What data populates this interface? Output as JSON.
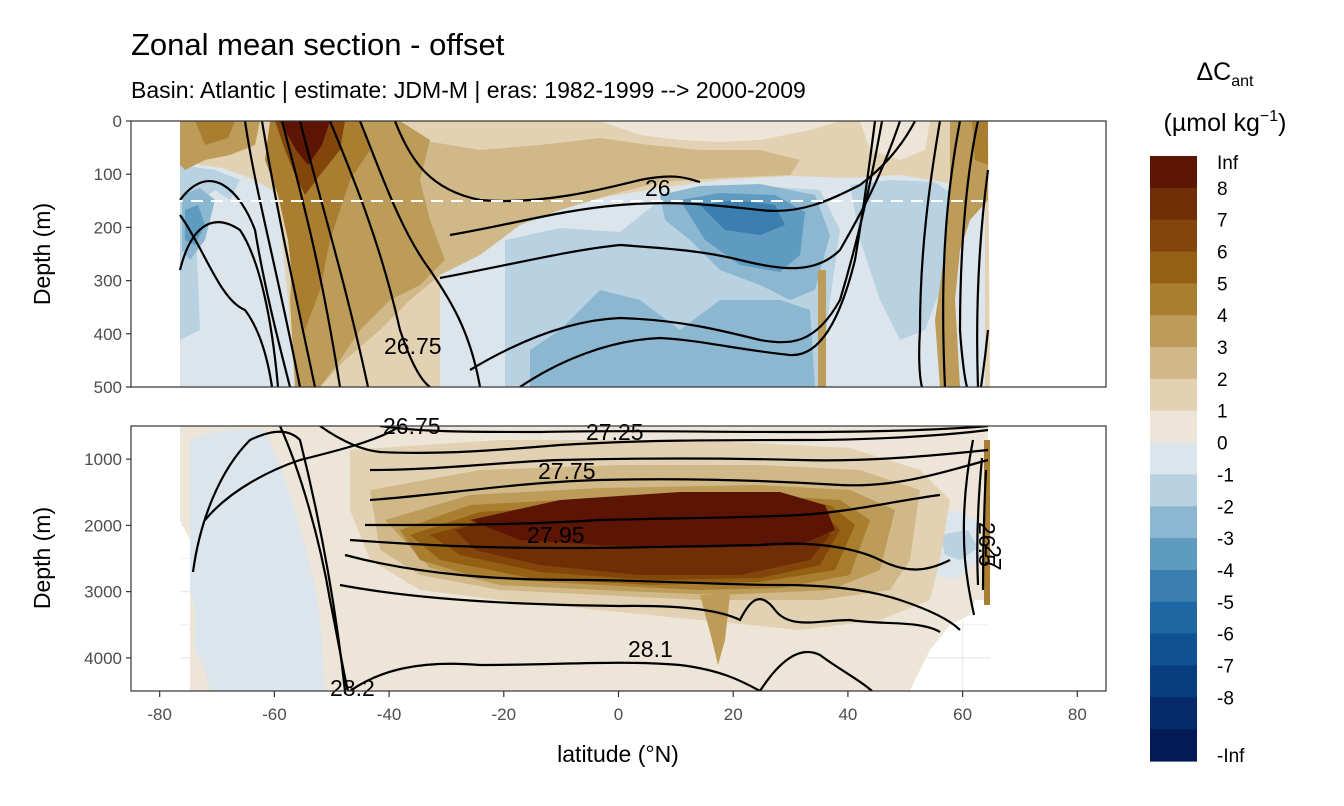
{
  "chart_data": {
    "type": "heatmap",
    "title": "Zonal mean section - offset",
    "subtitle": "Basin: Atlantic | estimate: JDM-M | eras: 1982-1999 --> 2000-2009",
    "xlabel": "latitude (°N)",
    "xlim": [
      -85,
      85
    ],
    "xticks": [
      -80,
      -60,
      -40,
      -20,
      0,
      20,
      40,
      60,
      80
    ],
    "xtick_labels": [
      "-80",
      "-60",
      "-40",
      "-20",
      "0",
      "20",
      "40",
      "60",
      "80"
    ],
    "panels": [
      {
        "name": "upper",
        "ylabel": "Depth (m)",
        "ylim": [
          0,
          500
        ],
        "yticks": [
          0,
          100,
          200,
          300,
          400,
          500
        ],
        "ytick_labels": [
          "0",
          "100",
          "200",
          "300",
          "400",
          "500"
        ],
        "reference_depth": 150
      },
      {
        "name": "lower",
        "ylabel": "Depth (m)",
        "ylim": [
          500,
          4500
        ],
        "yticks": [
          1000,
          2000,
          3000,
          4000
        ],
        "ytick_labels": [
          "1000",
          "2000",
          "3000",
          "4000"
        ]
      }
    ],
    "contour_labels": [
      "26",
      "26.75",
      "27.25",
      "27.75",
      "27.95",
      "28.1",
      "28.2",
      "26.75",
      "26.5",
      "27"
    ],
    "legend": {
      "title_main": "ΔC",
      "title_sub": "ant",
      "title_units": "(µmol kg",
      "title_exp": "−1",
      "title_close": ")",
      "labels": [
        "Inf",
        "8",
        "7",
        "6",
        "5",
        "4",
        "3",
        "2",
        "1",
        "0",
        "-1",
        "-2",
        "-3",
        "-4",
        "-5",
        "-6",
        "-7",
        "-8",
        "-Inf"
      ],
      "colors": [
        "#5c1404",
        "#702e07",
        "#82450a",
        "#936014",
        "#a97e30",
        "#bd9b58",
        "#d0b888",
        "#e2d2b3",
        "#ede5d7",
        "#dce5eb",
        "#b8d2e2",
        "#8cb7d0",
        "#5f9ac0",
        "#3b7fb0",
        "#1f67a2",
        "#0f5193",
        "#083d80",
        "#052b6b",
        "#031a57"
      ]
    }
  }
}
